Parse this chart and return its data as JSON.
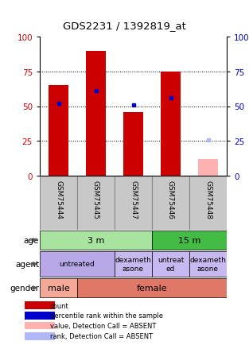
{
  "title": "GDS2231 / 1392819_at",
  "samples": [
    "GSM75444",
    "GSM75445",
    "GSM75447",
    "GSM75446",
    "GSM75448"
  ],
  "count_values": [
    65,
    90,
    46,
    75,
    0
  ],
  "absent_count_value": 12,
  "absent_count_idx": 4,
  "rank_values": [
    52,
    61,
    51,
    56,
    0
  ],
  "absent_rank_value": 26,
  "absent_rank_idx": 4,
  "ylim": [
    0,
    100
  ],
  "age_groups": [
    {
      "label": "3 m",
      "start": 0,
      "end": 3,
      "color": "#a8e4a0"
    },
    {
      "label": "15 m",
      "start": 3,
      "end": 5,
      "color": "#44bb44"
    }
  ],
  "agent_groups": [
    {
      "label": "untreated",
      "start": 0,
      "end": 2,
      "color": "#b8a8e8"
    },
    {
      "label": "dexameth\nasone",
      "start": 2,
      "end": 3,
      "color": "#c8b8f0"
    },
    {
      "label": "untreat\ned",
      "start": 3,
      "end": 4,
      "color": "#c8b8f0"
    },
    {
      "label": "dexameth\nasone",
      "start": 4,
      "end": 5,
      "color": "#c8b8f0"
    }
  ],
  "gender_groups": [
    {
      "label": "male",
      "start": 0,
      "end": 1,
      "color": "#f4a898"
    },
    {
      "label": "female",
      "start": 1,
      "end": 5,
      "color": "#e07868"
    }
  ],
  "row_labels": [
    "age",
    "agent",
    "gender"
  ],
  "legend_items": [
    {
      "color": "#cc0000",
      "label": "count"
    },
    {
      "color": "#0000cc",
      "label": "percentile rank within the sample"
    },
    {
      "color": "#ffb0b0",
      "label": "value, Detection Call = ABSENT"
    },
    {
      "color": "#b0b8f8",
      "label": "rank, Detection Call = ABSENT"
    }
  ]
}
